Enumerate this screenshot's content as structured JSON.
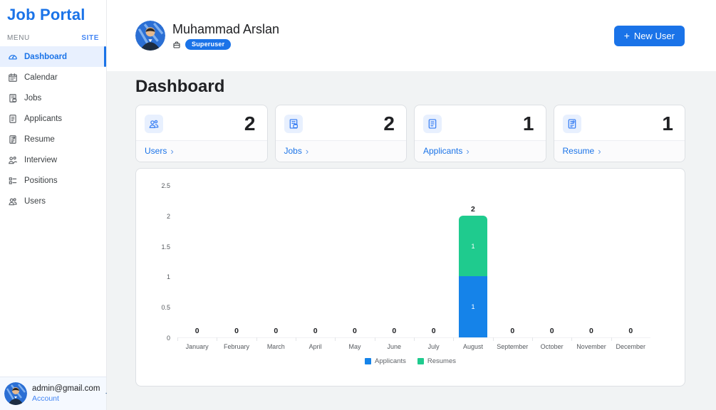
{
  "app": {
    "title": "Job Portal"
  },
  "sidebar": {
    "menu_label": "MENU",
    "site_label": "SITE",
    "items": [
      {
        "label": "Dashboard",
        "icon": "dashboard-icon",
        "active": true
      },
      {
        "label": "Calendar",
        "icon": "calendar-icon",
        "active": false
      },
      {
        "label": "Jobs",
        "icon": "jobs-icon",
        "active": false
      },
      {
        "label": "Applicants",
        "icon": "applicants-icon",
        "active": false
      },
      {
        "label": "Resume",
        "icon": "resume-icon",
        "active": false
      },
      {
        "label": "Interview",
        "icon": "interview-icon",
        "active": false
      },
      {
        "label": "Positions",
        "icon": "positions-icon",
        "active": false
      },
      {
        "label": "Users",
        "icon": "users-icon",
        "active": false
      }
    ],
    "account": {
      "email": "admin@gmail.com",
      "link_label": "Account",
      "logout_icon": "logout-icon"
    }
  },
  "header": {
    "user_name": "Muhammad Arslan",
    "role_badge": "Superuser",
    "badge_icon": "briefcase-icon",
    "new_user": {
      "plus": "+",
      "label": "New User"
    }
  },
  "page": {
    "title": "Dashboard"
  },
  "stat_cards": [
    {
      "icon": "users-icon",
      "value": "2",
      "link": "Users"
    },
    {
      "icon": "jobs-icon",
      "value": "2",
      "link": "Jobs"
    },
    {
      "icon": "applicants-icon",
      "value": "1",
      "link": "Applicants"
    },
    {
      "icon": "resume-icon",
      "value": "1",
      "link": "Resume"
    }
  ],
  "ui": {
    "chevron": "›"
  },
  "chart_data": {
    "type": "bar",
    "stacked": true,
    "title": "",
    "xlabel": "",
    "ylabel": "",
    "categories": [
      "January",
      "February",
      "March",
      "April",
      "May",
      "June",
      "July",
      "August",
      "September",
      "October",
      "November",
      "December"
    ],
    "series": [
      {
        "name": "Applicants",
        "color": "#1583e9",
        "values": [
          0,
          0,
          0,
          0,
          0,
          0,
          0,
          1,
          0,
          0,
          0,
          0
        ]
      },
      {
        "name": "Resumes",
        "color": "#1fcb8e",
        "values": [
          0,
          0,
          0,
          0,
          0,
          0,
          0,
          1,
          0,
          0,
          0,
          0
        ]
      }
    ],
    "totals": [
      0,
      0,
      0,
      0,
      0,
      0,
      0,
      2,
      0,
      0,
      0,
      0
    ],
    "ylim": [
      0,
      2.5
    ],
    "yticks": [
      0,
      0.5,
      1,
      1.5,
      2,
      2.5
    ],
    "grid": false,
    "legend_position": "bottom"
  },
  "colors": {
    "accent": "#1a73e8",
    "bar_applicants": "#1583e9",
    "bar_resumes": "#1fcb8e",
    "main_bg": "#f1f3f4"
  }
}
